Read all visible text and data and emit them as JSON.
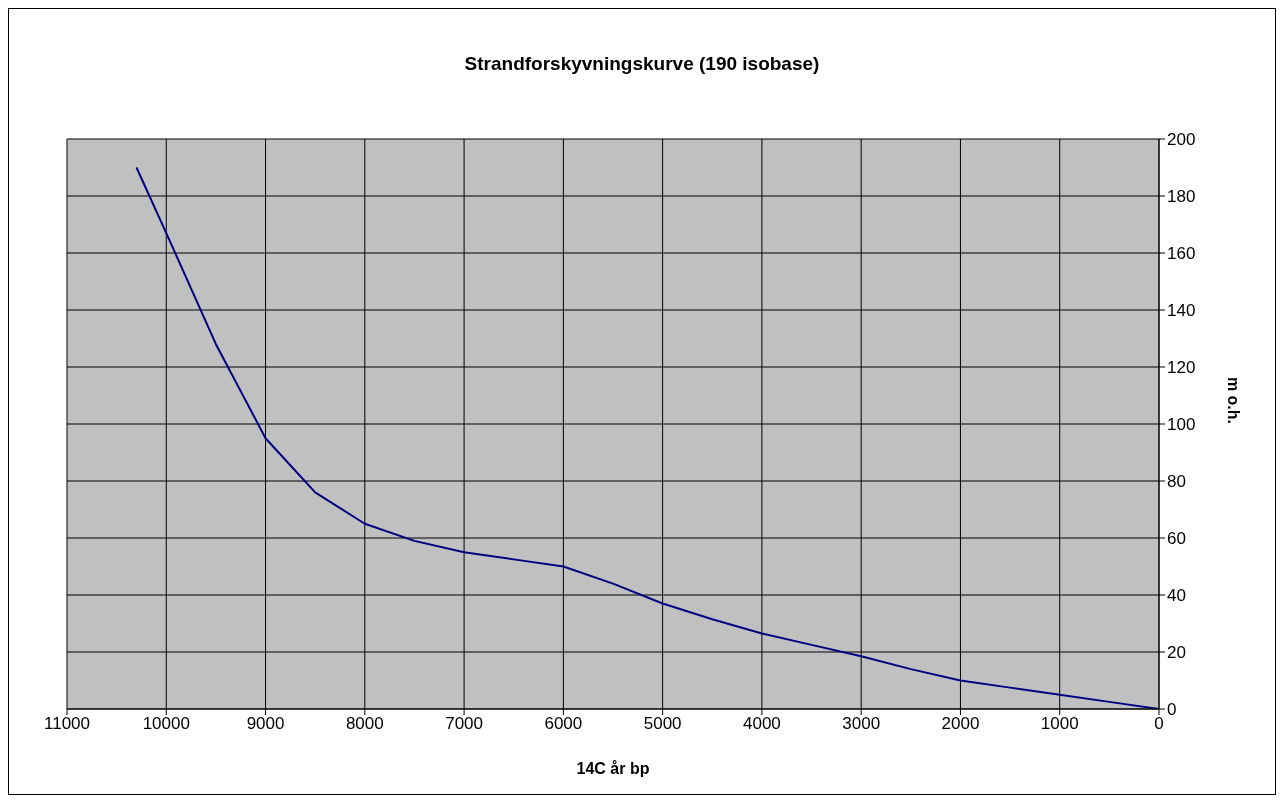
{
  "chart_data": {
    "type": "line",
    "title": "Strandforskyvningskurve (190 isobase)",
    "xlabel": "14C år bp",
    "ylabel": "m o.h.",
    "x": [
      10300,
      10000,
      9500,
      9000,
      8500,
      8000,
      7500,
      7000,
      6500,
      6000,
      5500,
      5000,
      4500,
      4000,
      3500,
      3000,
      2500,
      2000,
      1500,
      1000,
      500,
      0
    ],
    "series": [
      {
        "color": "#000080",
        "values": [
          190,
          167,
          128,
          95,
          76,
          65,
          59,
          55,
          52.5,
          50,
          44,
          37,
          31.5,
          26.5,
          22.5,
          18.5,
          14,
          10,
          7.5,
          5,
          2.5,
          0
        ]
      }
    ],
    "xlim": [
      11000,
      0
    ],
    "xticks": [
      11000,
      10000,
      9000,
      8000,
      7000,
      6000,
      5000,
      4000,
      3000,
      2000,
      1000,
      0
    ],
    "ylim": [
      0,
      200
    ],
    "yticks": [
      0,
      20,
      40,
      60,
      80,
      100,
      120,
      140,
      160,
      180,
      200
    ],
    "grid": true,
    "legend": false,
    "marker": "none",
    "line_style": "solid"
  }
}
